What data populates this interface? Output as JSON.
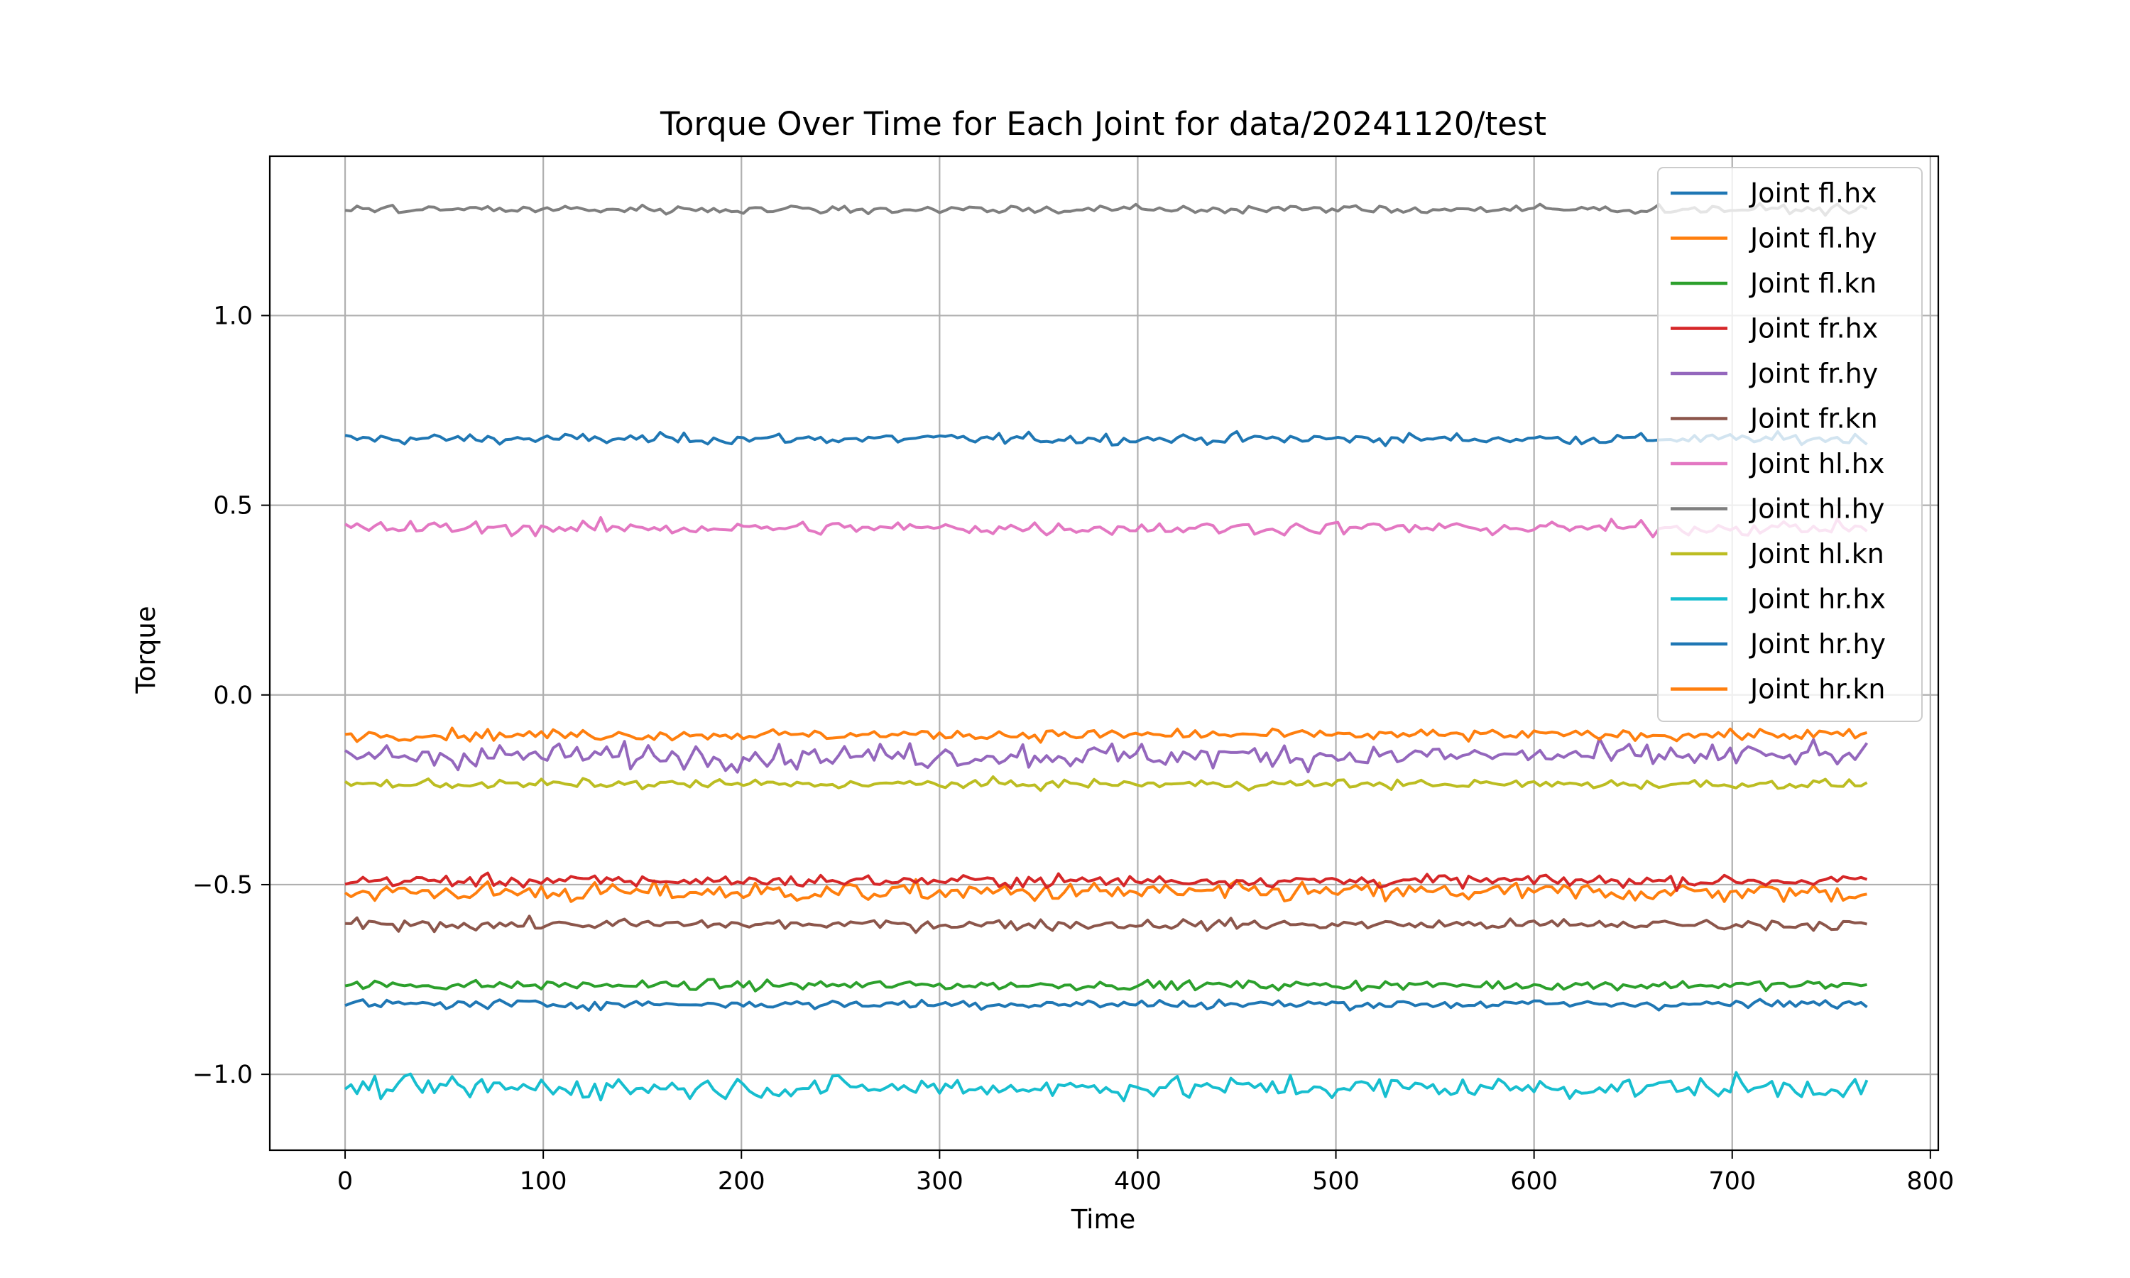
{
  "chart_data": {
    "type": "line",
    "title": "Torque Over Time for Each Joint for data/20241120/test",
    "xlabel": "Time",
    "ylabel": "Torque",
    "xlim": [
      -38,
      804
    ],
    "ylim": [
      -1.2,
      1.42
    ],
    "xticks": [
      0,
      100,
      200,
      300,
      400,
      500,
      600,
      700,
      800
    ],
    "xtick_labels": [
      "0",
      "100",
      "200",
      "300",
      "400",
      "500",
      "600",
      "700",
      "800"
    ],
    "yticks": [
      1.0,
      0.5,
      0.0,
      -0.5,
      -1.0
    ],
    "ytick_labels": [
      "1.0",
      "0.5",
      "0.0",
      "−0.5",
      "−1.0"
    ],
    "grid": true,
    "legend_position": "top-right",
    "x_range": [
      0,
      768
    ],
    "series": [
      {
        "name": "Joint fl.hx",
        "mean": 0.675,
        "noise": 0.007,
        "color": "#1f77b4"
      },
      {
        "name": "Joint fl.hy",
        "mean": -0.52,
        "noise": 0.013,
        "color": "#ff7f0e"
      },
      {
        "name": "Joint fl.kn",
        "mean": -0.765,
        "noise": 0.006,
        "color": "#2ca02c"
      },
      {
        "name": "Joint fr.hx",
        "mean": -0.49,
        "noise": 0.008,
        "color": "#d62728"
      },
      {
        "name": "Joint fr.hy",
        "mean": -0.16,
        "noise": 0.016,
        "color": "#9467bd"
      },
      {
        "name": "Joint fr.kn",
        "mean": -0.605,
        "noise": 0.007,
        "color": "#8c564b"
      },
      {
        "name": "Joint hl.hx",
        "mean": 0.44,
        "noise": 0.009,
        "color": "#e377c2"
      },
      {
        "name": "Joint hl.hy",
        "mean": 1.28,
        "noise": 0.006,
        "color": "#7f7f7f"
      },
      {
        "name": "Joint hl.kn",
        "mean": -0.235,
        "noise": 0.006,
        "color": "#bcbd22"
      },
      {
        "name": "Joint hr.hx",
        "mean": -1.035,
        "noise": 0.014,
        "color": "#17becf"
      },
      {
        "name": "Joint hr.hy",
        "mean": -0.815,
        "noise": 0.006,
        "color": "#1f77b4"
      },
      {
        "name": "Joint hr.kn",
        "mean": -0.105,
        "noise": 0.007,
        "color": "#ff7f0e"
      }
    ]
  }
}
